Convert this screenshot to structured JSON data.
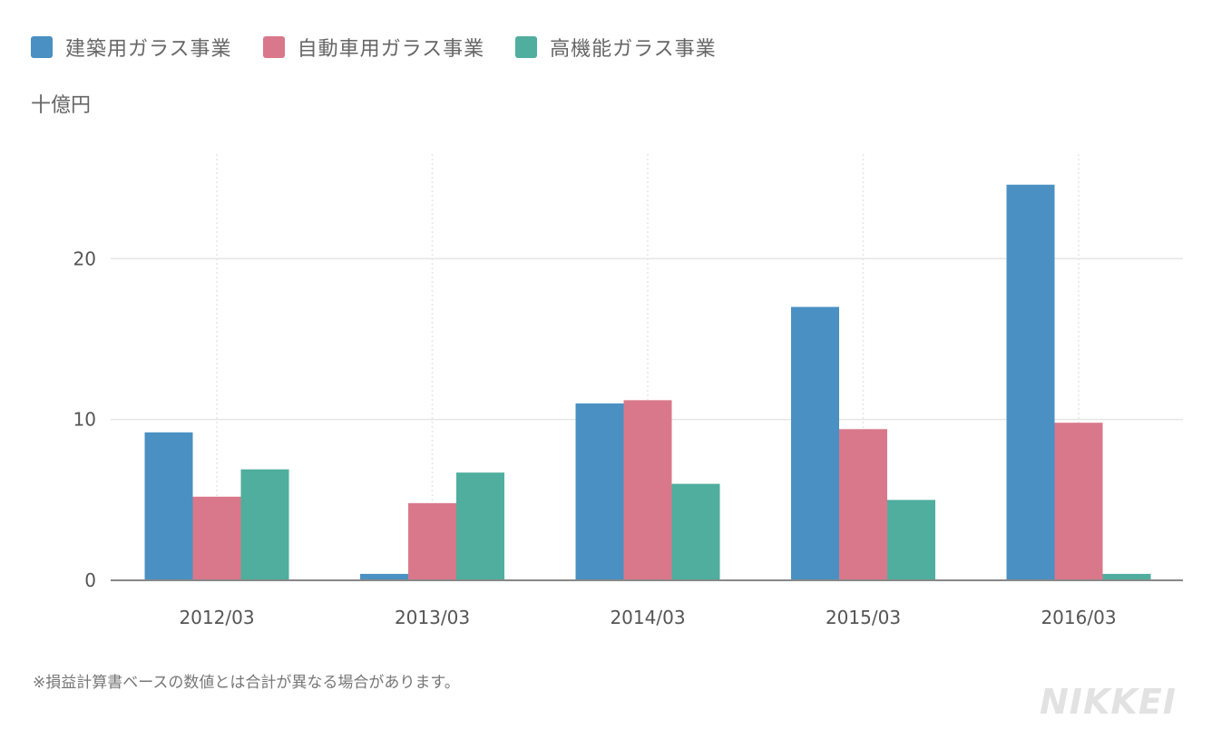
{
  "colors": {
    "building": "#4a90c2",
    "auto": "#d9788a",
    "functional": "#4fae9e",
    "axis": "#888888",
    "grid": "#e6e6e6"
  },
  "legend": {
    "items": [
      {
        "label": "建築用ガラス事業",
        "color": "#4a90c2"
      },
      {
        "label": "自動車用ガラス事業",
        "color": "#d9788a"
      },
      {
        "label": "高機能ガラス事業",
        "color": "#4fae9e"
      }
    ]
  },
  "unit_label": "十億円",
  "footnote": "※損益計算書ベースの数値とは合計が異なる場合があります。",
  "logo": "NIKKEI",
  "chart_data": {
    "type": "bar",
    "categories": [
      "2012/03",
      "2013/03",
      "2014/03",
      "2015/03",
      "2016/03"
    ],
    "series": [
      {
        "name": "建築用ガラス事業",
        "values": [
          9.2,
          0.4,
          11.0,
          17.0,
          24.6
        ]
      },
      {
        "name": "自動車用ガラス事業",
        "values": [
          5.2,
          4.8,
          11.2,
          9.4,
          9.8
        ]
      },
      {
        "name": "高機能ガラス事業",
        "values": [
          6.9,
          6.7,
          6.0,
          5.0,
          0.4
        ]
      }
    ],
    "yticks": [
      0,
      10,
      20
    ],
    "ylim": [
      0,
      26.5
    ],
    "ylabel": "十億円",
    "grid": true,
    "legend_position": "top-left"
  }
}
